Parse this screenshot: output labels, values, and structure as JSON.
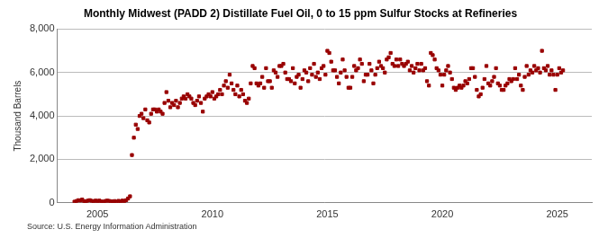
{
  "chart_data": {
    "type": "scatter",
    "title": "Monthly Midwest (PADD 2) Distillate Fuel Oil, 0 to 15 ppm Sulfur Stocks at Refineries",
    "y_label": "Thousand Barrels",
    "source": "Source: U.S. Energy Information Administration",
    "color": "#990000",
    "marker": "square",
    "grid": "y",
    "xlim": [
      2003.25,
      2026.5
    ],
    "xticks": [
      2005,
      2010,
      2015,
      2020,
      2025
    ],
    "ylim": [
      0,
      8000
    ],
    "yticks": [
      {
        "value": 0,
        "label": "0"
      },
      {
        "value": 2000,
        "label": "2,000"
      },
      {
        "value": 4000,
        "label": "4,000"
      },
      {
        "value": 6000,
        "label": "6,000"
      },
      {
        "value": 8000,
        "label": "8,000"
      }
    ],
    "x": [
      2004.0,
      2004.083,
      2004.167,
      2004.25,
      2004.333,
      2004.417,
      2004.5,
      2004.583,
      2004.667,
      2004.75,
      2004.833,
      2004.917,
      2005.0,
      2005.083,
      2005.167,
      2005.25,
      2005.333,
      2005.417,
      2005.5,
      2005.583,
      2005.667,
      2005.75,
      2005.833,
      2005.917,
      2006.0,
      2006.083,
      2006.167,
      2006.25,
      2006.333,
      2006.417,
      2006.5,
      2006.583,
      2006.667,
      2006.75,
      2006.833,
      2006.917,
      2007.0,
      2007.083,
      2007.167,
      2007.25,
      2007.333,
      2007.417,
      2007.5,
      2007.583,
      2007.667,
      2007.75,
      2007.833,
      2007.917,
      2008.0,
      2008.083,
      2008.167,
      2008.25,
      2008.333,
      2008.417,
      2008.5,
      2008.583,
      2008.667,
      2008.75,
      2008.833,
      2008.917,
      2009.0,
      2009.083,
      2009.167,
      2009.25,
      2009.333,
      2009.417,
      2009.5,
      2009.583,
      2009.667,
      2009.75,
      2009.833,
      2009.917,
      2010.0,
      2010.083,
      2010.167,
      2010.25,
      2010.333,
      2010.417,
      2010.5,
      2010.583,
      2010.667,
      2010.75,
      2010.833,
      2010.917,
      2011.0,
      2011.083,
      2011.167,
      2011.25,
      2011.333,
      2011.417,
      2011.5,
      2011.583,
      2011.667,
      2011.75,
      2011.833,
      2011.917,
      2012.0,
      2012.083,
      2012.167,
      2012.25,
      2012.333,
      2012.417,
      2012.5,
      2012.583,
      2012.667,
      2012.75,
      2012.833,
      2012.917,
      2013.0,
      2013.083,
      2013.167,
      2013.25,
      2013.333,
      2013.417,
      2013.5,
      2013.583,
      2013.667,
      2013.75,
      2013.833,
      2013.917,
      2014.0,
      2014.083,
      2014.167,
      2014.25,
      2014.333,
      2014.417,
      2014.5,
      2014.583,
      2014.667,
      2014.75,
      2014.833,
      2014.917,
      2015.0,
      2015.083,
      2015.167,
      2015.25,
      2015.333,
      2015.417,
      2015.5,
      2015.583,
      2015.667,
      2015.75,
      2015.833,
      2015.917,
      2016.0,
      2016.083,
      2016.167,
      2016.25,
      2016.333,
      2016.417,
      2016.5,
      2016.583,
      2016.667,
      2016.75,
      2016.833,
      2016.917,
      2017.0,
      2017.083,
      2017.167,
      2017.25,
      2017.333,
      2017.417,
      2017.5,
      2017.583,
      2017.667,
      2017.75,
      2017.833,
      2017.917,
      2018.0,
      2018.083,
      2018.167,
      2018.25,
      2018.333,
      2018.417,
      2018.5,
      2018.583,
      2018.667,
      2018.75,
      2018.833,
      2018.917,
      2019.0,
      2019.083,
      2019.167,
      2019.25,
      2019.333,
      2019.417,
      2019.5,
      2019.583,
      2019.667,
      2019.75,
      2019.833,
      2019.917,
      2020.0,
      2020.083,
      2020.167,
      2020.25,
      2020.333,
      2020.417,
      2020.5,
      2020.583,
      2020.667,
      2020.75,
      2020.833,
      2020.917,
      2021.0,
      2021.083,
      2021.167,
      2021.25,
      2021.333,
      2021.417,
      2021.5,
      2021.583,
      2021.667,
      2021.75,
      2021.833,
      2021.917,
      2022.0,
      2022.083,
      2022.167,
      2022.25,
      2022.333,
      2022.417,
      2022.5,
      2022.583,
      2022.667,
      2022.75,
      2022.833,
      2022.917,
      2023.0,
      2023.083,
      2023.167,
      2023.25,
      2023.333,
      2023.417,
      2023.5,
      2023.583,
      2023.667,
      2023.75,
      2023.833,
      2023.917,
      2024.0,
      2024.083,
      2024.167,
      2024.25,
      2024.333,
      2024.417,
      2024.5,
      2024.583,
      2024.667,
      2024.75,
      2024.833,
      2024.917,
      2025.0,
      2025.083,
      2025.167,
      2025.25
    ],
    "values": [
      50,
      80,
      120,
      100,
      150,
      80,
      60,
      100,
      120,
      90,
      70,
      100,
      80,
      100,
      60,
      50,
      80,
      100,
      90,
      70,
      60,
      80,
      50,
      90,
      60,
      100,
      80,
      120,
      200,
      300,
      2200,
      3000,
      3600,
      3400,
      4000,
      4100,
      3900,
      4300,
      3800,
      3700,
      4100,
      4300,
      4300,
      4200,
      4300,
      4200,
      4100,
      4600,
      5100,
      4700,
      4400,
      4600,
      4500,
      4700,
      4400,
      4600,
      4800,
      4900,
      4800,
      5000,
      4900,
      4800,
      4600,
      4500,
      4700,
      4900,
      4600,
      4200,
      4800,
      4900,
      5000,
      4900,
      5100,
      4800,
      4900,
      5000,
      5200,
      5000,
      5400,
      5600,
      5300,
      5900,
      5500,
      5200,
      5000,
      5400,
      4900,
      5200,
      5000,
      4700,
      4600,
      4800,
      5500,
      6300,
      6200,
      5500,
      5400,
      5500,
      5800,
      5300,
      6200,
      5600,
      5600,
      5300,
      6100,
      6000,
      5800,
      6300,
      6300,
      6400,
      6000,
      5700,
      5700,
      5600,
      6200,
      5500,
      5800,
      5900,
      5300,
      5700,
      6100,
      6000,
      5600,
      6200,
      5900,
      6400,
      5800,
      6000,
      5700,
      6200,
      6300,
      5900,
      7000,
      6900,
      6500,
      6100,
      6100,
      5800,
      5500,
      6000,
      6600,
      6100,
      5800,
      5300,
      5300,
      5800,
      6300,
      6100,
      6200,
      6600,
      6400,
      5600,
      5900,
      5900,
      6400,
      6100,
      5500,
      5900,
      6200,
      6500,
      6300,
      6200,
      6000,
      6600,
      6700,
      6900,
      6400,
      6300,
      6600,
      6300,
      6600,
      6400,
      6300,
      6400,
      6500,
      6100,
      6300,
      6000,
      6200,
      6400,
      6100,
      6400,
      6100,
      6200,
      5600,
      5400,
      6900,
      6800,
      6600,
      6200,
      6100,
      5900,
      5400,
      5900,
      6100,
      6300,
      6000,
      5700,
      5300,
      5200,
      5300,
      5400,
      5300,
      5400,
      5600,
      5500,
      5700,
      6200,
      6200,
      5800,
      5200,
      4900,
      5000,
      5300,
      5700,
      6300,
      5500,
      5400,
      5600,
      5800,
      6200,
      5500,
      5400,
      5200,
      5200,
      5400,
      5500,
      5700,
      5600,
      5700,
      6200,
      5700,
      5900,
      5400,
      5200,
      5800,
      6300,
      5900,
      6100,
      6000,
      6300,
      6100,
      6200,
      6000,
      7000,
      6200,
      6100,
      6300,
      5900,
      6100,
      5900,
      5200,
      5900,
      6200,
      6000,
      6100
    ]
  }
}
